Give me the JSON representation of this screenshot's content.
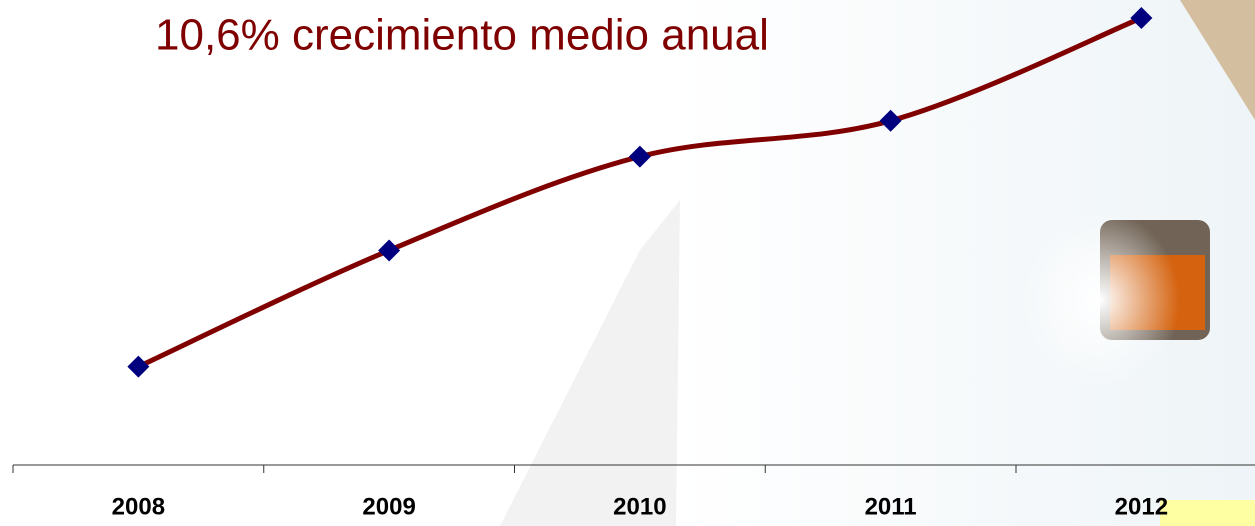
{
  "chart_data": {
    "type": "line",
    "title": "10,6% crecimiento medio anual",
    "categories": [
      "2008",
      "2009",
      "2010",
      "2011",
      "2012"
    ],
    "values": [
      22,
      48,
      69,
      77,
      100
    ],
    "color": "#800000",
    "marker_color": "#00007f",
    "ylim": [
      0,
      100
    ]
  }
}
